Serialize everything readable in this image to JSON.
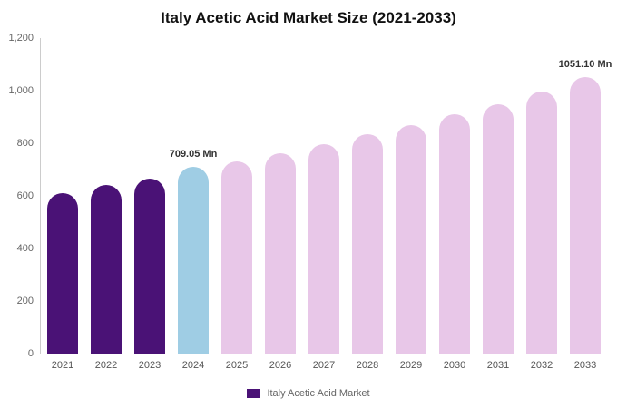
{
  "chart_data": {
    "type": "bar",
    "title": "Italy Acetic Acid Market Size (2021-2033)",
    "xlabel": "",
    "ylabel": "",
    "ylim": [
      0,
      1200
    ],
    "grid": false,
    "legend_position": "bottom",
    "ytick_values": [
      0,
      200,
      400,
      600,
      800,
      1000,
      1200
    ],
    "ytick_labels": [
      "0",
      "200",
      "400",
      "600",
      "800",
      "1,000",
      "1,200"
    ],
    "categories": [
      "2021",
      "2022",
      "2023",
      "2024",
      "2025",
      "2026",
      "2027",
      "2028",
      "2029",
      "2030",
      "2031",
      "2032",
      "2033"
    ],
    "values": [
      610,
      640,
      665,
      709.05,
      730,
      763,
      797,
      833,
      870,
      910,
      950,
      995,
      1051.1
    ],
    "colors": [
      "#4a1276",
      "#4a1276",
      "#4a1276",
      "#9fcde4",
      "#e8c7e8",
      "#e8c7e8",
      "#e8c7e8",
      "#e8c7e8",
      "#e8c7e8",
      "#e8c7e8",
      "#e8c7e8",
      "#e8c7e8",
      "#e8c7e8"
    ],
    "annotations": {
      "3": "709.05 Mn",
      "12": "1051.10 Mn"
    },
    "legend_label": "Italy Acetic Acid Market",
    "legend_color": "#4a1276"
  }
}
